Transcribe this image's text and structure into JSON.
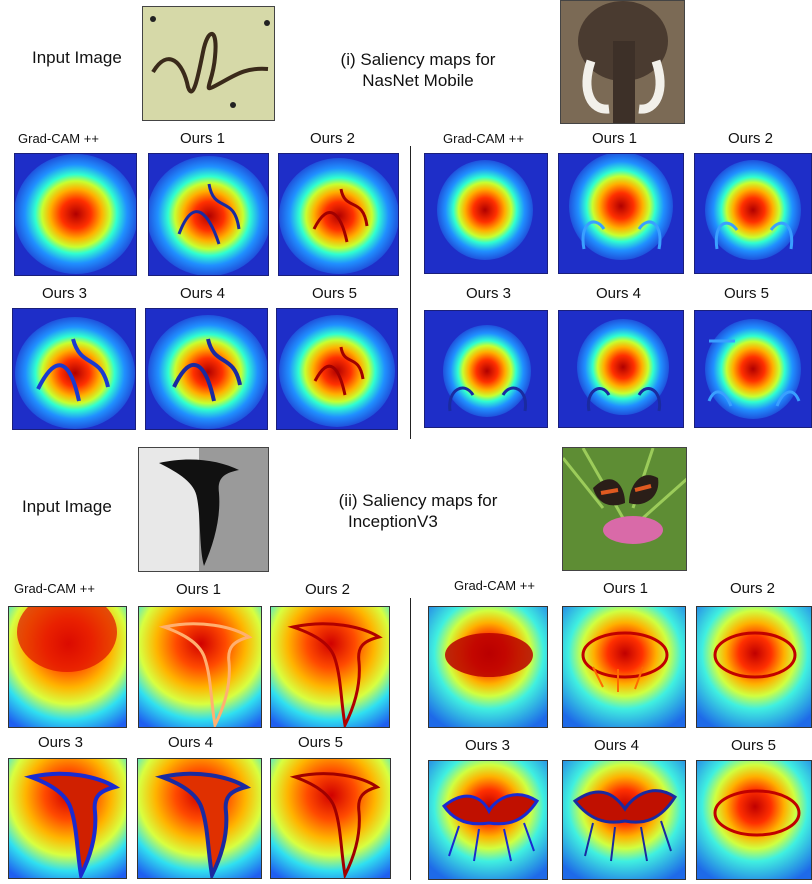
{
  "panel1": {
    "input_label": "Input Image",
    "caption_line1": "(i) Saliency maps for",
    "caption_line2": "NasNet Mobile",
    "left": {
      "labels": [
        "Grad-CAM ++",
        "Ours 1",
        "Ours 2",
        "Ours 3",
        "Ours 4",
        "Ours 5"
      ]
    },
    "right": {
      "labels": [
        "Grad-CAM ++",
        "Ours 1",
        "Ours 2",
        "Ours 3",
        "Ours 4",
        "Ours 5"
      ]
    }
  },
  "panel2": {
    "input_label": "Input Image",
    "caption_line1": "(ii) Saliency maps for",
    "caption_line2": "InceptionV3",
    "left": {
      "labels": [
        "Grad-CAM ++",
        "Ours 1",
        "Ours 2",
        "Ours 3",
        "Ours 4",
        "Ours 5"
      ]
    },
    "right": {
      "labels": [
        "Grad-CAM ++",
        "Ours 1",
        "Ours 2",
        "Ours 3",
        "Ours 4",
        "Ours 5"
      ]
    }
  },
  "colors": {
    "jet_low": "#1f2fd0",
    "jet_high": "#c00000",
    "divider": "#222222"
  }
}
